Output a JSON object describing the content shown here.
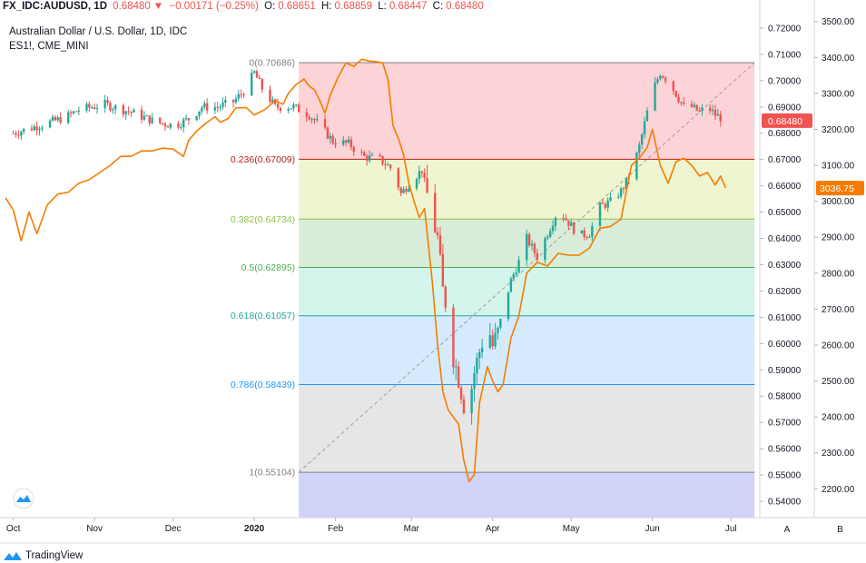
{
  "header": {
    "symbol": "FX_IDC:AUDUSD, 1D",
    "last": "0.68480",
    "change": "−0.00171 (−0.25%)",
    "o_label": "O:",
    "o_value": "0.68651",
    "h_label": "H:",
    "h_value": "0.68859",
    "l_label": "L:",
    "l_value": "0.68447",
    "c_label": "C:",
    "c_value": "0.68480"
  },
  "legend": {
    "main": "Australian Dollar / U.S. Dollar, 1D, IDC",
    "overlay": "ES1!, CME_MINI"
  },
  "brand": "TradingView",
  "colors": {
    "up": "#26a69a",
    "down": "#ef5350",
    "overlay": "#f57c00",
    "last_tag": "#ef5350",
    "overlay_tag": "#f57c00"
  },
  "chart_data": {
    "type": "candlestick",
    "title": "Australian Dollar / U.S. Dollar, 1D, IDC",
    "x_ticks": [
      {
        "label": "Oct",
        "day": 0
      },
      {
        "label": "Nov",
        "day": 31
      },
      {
        "label": "Dec",
        "day": 61
      },
      {
        "label": "2020",
        "day": 92
      },
      {
        "label": "Feb",
        "day": 123
      },
      {
        "label": "Mar",
        "day": 152
      },
      {
        "label": "Apr",
        "day": 183
      },
      {
        "label": "May",
        "day": 213
      },
      {
        "label": "Jun",
        "day": 244
      },
      {
        "label": "Jul",
        "day": 274
      }
    ],
    "x_range": [
      -3,
      285
    ],
    "left_axis": {
      "range": [
        0.5338,
        0.7255
      ],
      "ticks": [
        "0.72000",
        "0.71000",
        "0.70000",
        "0.69000",
        "0.68000",
        "0.67000",
        "0.66000",
        "0.65000",
        "0.64000",
        "0.63000",
        "0.62000",
        "0.61000",
        "0.60000",
        "0.59000",
        "0.58000",
        "0.57000",
        "0.56000",
        "0.55000",
        "0.54000"
      ]
    },
    "right_axis": {
      "range": [
        2120,
        3522
      ],
      "ticks": [
        "3500.00",
        "3400.00",
        "3300.00",
        "3200.00",
        "3100.00",
        "3000.00",
        "2900.00",
        "2800.00",
        "2700.00",
        "2600.00",
        "2500.00",
        "2400.00",
        "2300.00",
        "2200.00"
      ]
    },
    "last_price": {
      "value": 0.6848,
      "label": "0.68480"
    },
    "overlay_last": {
      "value": 3036.75,
      "label": "3036.75"
    },
    "axis_letters": [
      "A",
      "B"
    ],
    "fib": {
      "start_day": 109,
      "end_day": 283,
      "levels": [
        {
          "label": "0(0.70686)",
          "value": 0.70686,
          "line": "#808080",
          "fill": "rgba(242,54,69,0.22)"
        },
        {
          "label": "0.236(0.67009)",
          "value": 0.67009,
          "line": "#b71c1c",
          "fill": "rgba(180,210,40,0.22)"
        },
        {
          "label": "0.382(0.64734)",
          "value": 0.64734,
          "line": "#8bc34a",
          "fill": "rgba(76,175,80,0.22)"
        },
        {
          "label": "0.5(0.62895)",
          "value": 0.62895,
          "line": "#4caf50",
          "fill": "rgba(38,198,160,0.2)"
        },
        {
          "label": "0.618(0.61057)",
          "value": 0.61057,
          "line": "#26a69a",
          "fill": "rgba(66,165,245,0.22)"
        },
        {
          "label": "0.786(0.58439)",
          "value": 0.58439,
          "line": "#2196f3",
          "fill": "rgba(140,140,140,0.22)"
        },
        {
          "label": "1(0.55104)",
          "value": 0.55104,
          "line": "#808080",
          "fill": "rgba(94,96,230,0.28)"
        }
      ],
      "trend_from": {
        "day": 109,
        "value": 0.55104
      },
      "trend_to": {
        "day": 283,
        "value": 0.70686
      }
    },
    "keypoints_price": [
      [
        0,
        0.68
      ],
      [
        10,
        0.683
      ],
      [
        20,
        0.686
      ],
      [
        25,
        0.689
      ],
      [
        30,
        0.69
      ],
      [
        35,
        0.691
      ],
      [
        45,
        0.688
      ],
      [
        55,
        0.684
      ],
      [
        62,
        0.683
      ],
      [
        68,
        0.686
      ],
      [
        72,
        0.69
      ],
      [
        78,
        0.69
      ],
      [
        84,
        0.692
      ],
      [
        88,
        0.696
      ],
      [
        92,
        0.703
      ],
      [
        95,
        0.697
      ],
      [
        100,
        0.69
      ],
      [
        107,
        0.69
      ],
      [
        113,
        0.687
      ],
      [
        117,
        0.683
      ],
      [
        122,
        0.677
      ],
      [
        128,
        0.676
      ],
      [
        134,
        0.671
      ],
      [
        140,
        0.67
      ],
      [
        145,
        0.666
      ],
      [
        148,
        0.657
      ],
      [
        152,
        0.662
      ],
      [
        156,
        0.666
      ],
      [
        159,
        0.652
      ],
      [
        162,
        0.64
      ],
      [
        164,
        0.62
      ],
      [
        166,
        0.612
      ],
      [
        168,
        0.595
      ],
      [
        170,
        0.587
      ],
      [
        172,
        0.577
      ],
      [
        174,
        0.578
      ],
      [
        176,
        0.589
      ],
      [
        178,
        0.597
      ],
      [
        181,
        0.608
      ],
      [
        183,
        0.599
      ],
      [
        185,
        0.604
      ],
      [
        187,
        0.613
      ],
      [
        190,
        0.624
      ],
      [
        193,
        0.631
      ],
      [
        196,
        0.64
      ],
      [
        200,
        0.633
      ],
      [
        204,
        0.642
      ],
      [
        208,
        0.651
      ],
      [
        212,
        0.646
      ],
      [
        216,
        0.641
      ],
      [
        220,
        0.642
      ],
      [
        224,
        0.652
      ],
      [
        228,
        0.654
      ],
      [
        232,
        0.658
      ],
      [
        236,
        0.665
      ],
      [
        239,
        0.675
      ],
      [
        242,
        0.688
      ],
      [
        244,
        0.696
      ],
      [
        247,
        0.703
      ],
      [
        250,
        0.7
      ],
      [
        253,
        0.695
      ],
      [
        256,
        0.69
      ],
      [
        259,
        0.69
      ],
      [
        262,
        0.688
      ],
      [
        265,
        0.69
      ],
      [
        268,
        0.687
      ],
      [
        272,
        0.685
      ]
    ],
    "keypoints_overlay": [
      [
        -3,
        3010
      ],
      [
        0,
        2975
      ],
      [
        3,
        2890
      ],
      [
        6,
        2970
      ],
      [
        9,
        2910
      ],
      [
        13,
        2990
      ],
      [
        17,
        3020
      ],
      [
        21,
        3025
      ],
      [
        25,
        3050
      ],
      [
        29,
        3060
      ],
      [
        33,
        3080
      ],
      [
        37,
        3100
      ],
      [
        41,
        3125
      ],
      [
        45,
        3125
      ],
      [
        49,
        3140
      ],
      [
        53,
        3140
      ],
      [
        57,
        3148
      ],
      [
        61,
        3145
      ],
      [
        65,
        3125
      ],
      [
        67,
        3170
      ],
      [
        70,
        3195
      ],
      [
        74,
        3220
      ],
      [
        77,
        3235
      ],
      [
        79,
        3220
      ],
      [
        82,
        3230
      ],
      [
        85,
        3260
      ],
      [
        89,
        3260
      ],
      [
        92,
        3240
      ],
      [
        96,
        3255
      ],
      [
        100,
        3280
      ],
      [
        103,
        3270
      ],
      [
        105,
        3300
      ],
      [
        108,
        3325
      ],
      [
        111,
        3340
      ],
      [
        113,
        3320
      ],
      [
        115,
        3310
      ],
      [
        117,
        3280
      ],
      [
        119,
        3245
      ],
      [
        121,
        3295
      ],
      [
        124,
        3345
      ],
      [
        127,
        3385
      ],
      [
        130,
        3375
      ],
      [
        133,
        3395
      ],
      [
        136,
        3390
      ],
      [
        139,
        3388
      ],
      [
        141,
        3385
      ],
      [
        143,
        3340
      ],
      [
        145,
        3210
      ],
      [
        147,
        3175
      ],
      [
        149,
        3130
      ],
      [
        151,
        3050
      ],
      [
        153,
        3000
      ],
      [
        155,
        2955
      ],
      [
        157,
        2980
      ],
      [
        160,
        2775
      ],
      [
        162,
        2600
      ],
      [
        164,
        2470
      ],
      [
        166,
        2420
      ],
      [
        168,
        2400
      ],
      [
        170,
        2380
      ],
      [
        172,
        2280
      ],
      [
        174,
        2220
      ],
      [
        176,
        2240
      ],
      [
        178,
        2440
      ],
      [
        181,
        2540
      ],
      [
        183,
        2500
      ],
      [
        185,
        2470
      ],
      [
        187,
        2490
      ],
      [
        190,
        2620
      ],
      [
        193,
        2680
      ],
      [
        196,
        2800
      ],
      [
        200,
        2830
      ],
      [
        204,
        2820
      ],
      [
        208,
        2855
      ],
      [
        212,
        2850
      ],
      [
        216,
        2850
      ],
      [
        220,
        2870
      ],
      [
        224,
        2925
      ],
      [
        228,
        2930
      ],
      [
        232,
        2950
      ],
      [
        236,
        3100
      ],
      [
        239,
        3120
      ],
      [
        242,
        3150
      ],
      [
        244,
        3200
      ],
      [
        247,
        3100
      ],
      [
        250,
        3050
      ],
      [
        253,
        3110
      ],
      [
        256,
        3120
      ],
      [
        259,
        3100
      ],
      [
        262,
        3070
      ],
      [
        265,
        3080
      ],
      [
        268,
        3045
      ],
      [
        270,
        3070
      ],
      [
        272,
        3036.75
      ]
    ]
  }
}
